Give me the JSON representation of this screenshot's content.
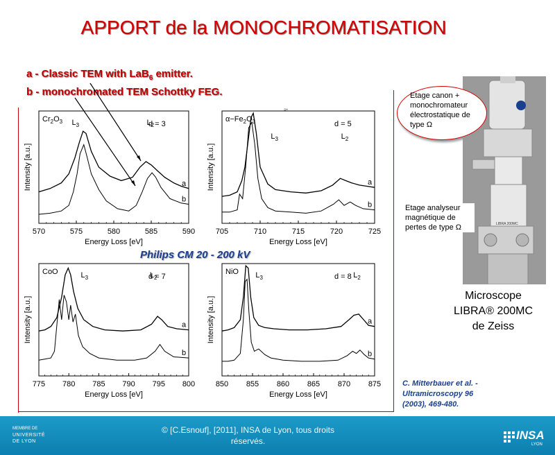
{
  "slide": {
    "title": "APPORT de la MONOCHROMATISATION",
    "legend_a_prefix": "a - Classic TEM with LaB",
    "legend_a_sub": "6",
    "legend_a_suffix": " emitter.",
    "legend_b": "b - monochromated TEM Schottky FEG.",
    "tem_label": "Philips CM 20 - 200 kV",
    "callout_canon": "Etage canon + monochromateur électrostatique de type Ω",
    "callout_analyser": "Etage analyseur magnétique de pertes de type Ω",
    "microscope_caption_line1": "Microscope",
    "microscope_caption_line2": "LIBRA® 200MC",
    "microscope_caption_line3": "de Zeiss",
    "citation_line1": "C. Mitterbauer et al. -",
    "citation_line2": "Ultramicroscopy 96",
    "citation_line3": "(2003), 469-480.",
    "footer_line1": "© [C.Esnouf], [2011], INSA de Lyon, tous droits",
    "footer_line2": "réservés.",
    "footer_logo_left_top": "MEMBRE DE",
    "footer_logo_left_main": "UNIVERSITÉ DE LYON",
    "footer_logo_right": "INSA",
    "footer_logo_right_sub": "LYON",
    "photo_badge": "LIBRA 200MC",
    "break_mark": "≈"
  },
  "chart_data": [
    {
      "type": "line",
      "sample": "Cr2O3",
      "sample_label_main": "Cr",
      "sample_label_sub1": "2",
      "sample_label_mid": "O",
      "sample_label_sub2": "3",
      "edges": [
        "L3",
        "L2"
      ],
      "d_label": "d = 3",
      "xlabel": "Energy Loss [eV]",
      "ylabel": "Intensity [a.u.]",
      "xlim": [
        570,
        590
      ],
      "xticks": [
        "570",
        "575",
        "580",
        "585",
        "590"
      ],
      "series": [
        {
          "name": "a",
          "x": [
            570,
            571.5,
            573,
            574,
            574.8,
            575.4,
            575.9,
            576.3,
            577,
            578,
            579.5,
            581,
            582.5,
            583.5,
            584.3,
            585,
            585.8,
            586.8,
            588,
            589,
            590
          ],
          "y": [
            0.28,
            0.31,
            0.36,
            0.44,
            0.58,
            0.72,
            0.82,
            0.8,
            0.64,
            0.5,
            0.42,
            0.38,
            0.41,
            0.5,
            0.55,
            0.52,
            0.47,
            0.41,
            0.36,
            0.33,
            0.31
          ]
        },
        {
          "name": "b",
          "x": [
            570,
            571.5,
            573,
            574,
            574.6,
            575.1,
            575.5,
            576,
            576.4,
            577,
            578,
            579,
            580.5,
            582,
            583,
            583.8,
            584.5,
            585.1,
            585.6,
            586.3,
            587.5,
            589,
            590
          ],
          "y": [
            0.08,
            0.09,
            0.11,
            0.16,
            0.28,
            0.44,
            0.62,
            0.7,
            0.6,
            0.44,
            0.3,
            0.2,
            0.13,
            0.11,
            0.16,
            0.28,
            0.4,
            0.45,
            0.41,
            0.32,
            0.22,
            0.18,
            0.17
          ]
        }
      ]
    },
    {
      "type": "line",
      "sample": "α−Fe2O3",
      "sample_label_main": "α−Fe",
      "sample_label_sub1": "2",
      "sample_label_mid": "O",
      "sample_label_sub2": "3",
      "edges": [
        "L3",
        "L2"
      ],
      "d_label": "d = 5",
      "xlabel": "Energy Loss [eV]",
      "ylabel": "Intensity [a.u.]",
      "xlim": [
        705,
        725
      ],
      "xticks": [
        "705",
        "710",
        "715",
        "720",
        "725"
      ],
      "series": [
        {
          "name": "a",
          "x": [
            705,
            706,
            707,
            707.6,
            708,
            708.4,
            708.8,
            709.1,
            709.5,
            710,
            711,
            712,
            714,
            716,
            718,
            719.5,
            720.5,
            721.2,
            722,
            723,
            724,
            725
          ],
          "y": [
            0.24,
            0.25,
            0.28,
            0.38,
            0.5,
            0.72,
            0.94,
            0.98,
            0.8,
            0.5,
            0.35,
            0.3,
            0.28,
            0.27,
            0.29,
            0.34,
            0.4,
            0.38,
            0.36,
            0.34,
            0.33,
            0.32
          ]
        },
        {
          "name": "b",
          "x": [
            705,
            706,
            707,
            707.3,
            707.7,
            708.1,
            708.5,
            708.9,
            709.3,
            709.7,
            710.2,
            711,
            712,
            714,
            716,
            718,
            719.6,
            720.3,
            721,
            721.8,
            722.5,
            723.5,
            725
          ],
          "y": [
            0.1,
            0.1,
            0.12,
            0.26,
            0.22,
            0.5,
            0.85,
            0.9,
            0.7,
            0.4,
            0.22,
            0.14,
            0.11,
            0.1,
            0.09,
            0.11,
            0.17,
            0.21,
            0.16,
            0.19,
            0.16,
            0.13,
            0.12
          ]
        }
      ]
    },
    {
      "type": "line",
      "sample": "CoO",
      "sample_label_main": "CoO",
      "sample_label_sub1": "",
      "sample_label_mid": "",
      "sample_label_sub2": "",
      "edges": [
        "L3",
        "L2"
      ],
      "d_label": "d = 7",
      "xlabel": "Energy Loss [eV]",
      "ylabel": "Intensity [a.u.]",
      "xlim": [
        775,
        800
      ],
      "xticks": [
        "775",
        "780",
        "785",
        "790",
        "795",
        "800"
      ],
      "series": [
        {
          "name": "a",
          "x": [
            775,
            776,
            777,
            778,
            778.8,
            779.4,
            779.9,
            780.3,
            780.8,
            781.5,
            782.5,
            784,
            786,
            789,
            792,
            793.8,
            794.8,
            795.5,
            796.5,
            798,
            800
          ],
          "y": [
            0.4,
            0.41,
            0.44,
            0.52,
            0.7,
            0.9,
            0.96,
            0.9,
            0.75,
            0.6,
            0.5,
            0.44,
            0.41,
            0.4,
            0.41,
            0.46,
            0.53,
            0.5,
            0.44,
            0.42,
            0.41
          ]
        },
        {
          "name": "b",
          "x": [
            775,
            776,
            777,
            777.6,
            778,
            778.4,
            778.8,
            779.2,
            779.6,
            780,
            780.3,
            780.7,
            781.1,
            781.6,
            782.3,
            783.5,
            785,
            788,
            791,
            793,
            794.4,
            795.2,
            796,
            797.5,
            800
          ],
          "y": [
            0.14,
            0.15,
            0.16,
            0.22,
            0.45,
            0.68,
            0.5,
            0.72,
            0.66,
            0.5,
            0.63,
            0.48,
            0.55,
            0.36,
            0.26,
            0.2,
            0.16,
            0.14,
            0.14,
            0.16,
            0.22,
            0.28,
            0.22,
            0.17,
            0.16
          ]
        }
      ]
    },
    {
      "type": "line",
      "sample": "NiO",
      "sample_label_main": "NiO",
      "sample_label_sub1": "",
      "sample_label_mid": "",
      "sample_label_sub2": "",
      "edges": [
        "L3",
        "L2"
      ],
      "d_label": "d = 8",
      "xlabel": "Energy Loss [eV]",
      "ylabel": "Intensity [a.u.]",
      "xlim": [
        850,
        875
      ],
      "xticks": [
        "850",
        "855",
        "860",
        "865",
        "870",
        "875"
      ],
      "series": [
        {
          "name": "a",
          "x": [
            850,
            851,
            852,
            853,
            853.5,
            853.9,
            854.3,
            854.7,
            855.2,
            856,
            857,
            858.5,
            861,
            864,
            867,
            869.5,
            870.8,
            871.6,
            872.4,
            873.2,
            874,
            875
          ],
          "y": [
            0.4,
            0.41,
            0.43,
            0.5,
            0.7,
            0.98,
            0.96,
            0.7,
            0.52,
            0.45,
            0.43,
            0.42,
            0.41,
            0.41,
            0.42,
            0.44,
            0.5,
            0.54,
            0.55,
            0.5,
            0.45,
            0.44
          ]
        },
        {
          "name": "b",
          "x": [
            850,
            851,
            852,
            853,
            853.5,
            853.8,
            854.1,
            854.4,
            854.8,
            855.3,
            856,
            857,
            858,
            860,
            863,
            866,
            869,
            870.5,
            871.4,
            872,
            872.6,
            873.3,
            874,
            875
          ],
          "y": [
            0.13,
            0.13,
            0.14,
            0.2,
            0.5,
            0.84,
            0.86,
            0.58,
            0.3,
            0.22,
            0.24,
            0.19,
            0.16,
            0.14,
            0.13,
            0.13,
            0.14,
            0.18,
            0.22,
            0.2,
            0.23,
            0.19,
            0.16,
            0.15
          ]
        }
      ]
    }
  ]
}
